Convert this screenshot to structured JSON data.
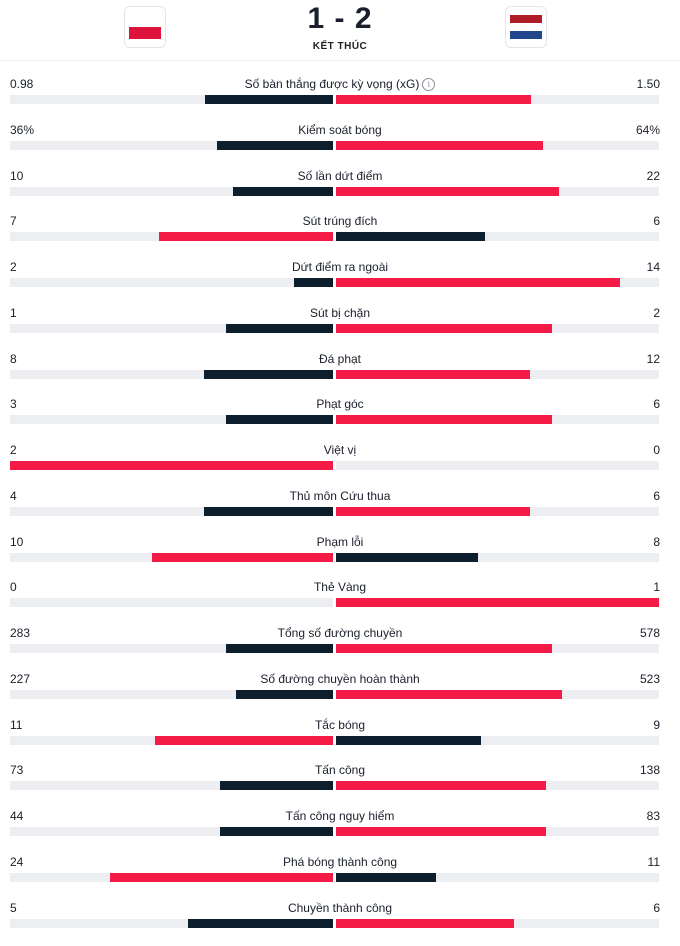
{
  "match": {
    "score": "1 - 2",
    "status": "KẾT THÚC",
    "home": {
      "flag": "poland-flag-icon",
      "flag_colors": [
        "#ffffff",
        "#dc143c"
      ]
    },
    "away": {
      "flag": "netherlands-flag-icon",
      "flag_colors": [
        "#ae1c28",
        "#ffffff",
        "#21468b"
      ]
    }
  },
  "colors": {
    "leader": "#f41c47",
    "trailer": "#0d1f2d",
    "track": "#eceef1"
  },
  "stats": [
    {
      "name": "Số bàn thắng được kỳ vọng (xG)",
      "home": "0.98",
      "away": "1.50",
      "home_share": 0.395,
      "away_share": 0.605,
      "info_icon": "info-icon"
    },
    {
      "name": "Kiểm soát bóng",
      "home": "36%",
      "away": "64%",
      "home_share": 0.36,
      "away_share": 0.64
    },
    {
      "name": "Số lần dứt điểm",
      "home": "10",
      "away": "22",
      "home_share": 0.31,
      "away_share": 0.69
    },
    {
      "name": "Sút trúng đích",
      "home": "7",
      "away": "6",
      "home_share": 0.54,
      "away_share": 0.46
    },
    {
      "name": "Dứt điểm ra ngoài",
      "home": "2",
      "away": "14",
      "home_share": 0.12,
      "away_share": 0.88
    },
    {
      "name": "Sút bị chặn",
      "home": "1",
      "away": "2",
      "home_share": 0.33,
      "away_share": 0.67
    },
    {
      "name": "Đá phạt",
      "home": "8",
      "away": "12",
      "home_share": 0.4,
      "away_share": 0.6
    },
    {
      "name": "Phạt góc",
      "home": "3",
      "away": "6",
      "home_share": 0.33,
      "away_share": 0.67
    },
    {
      "name": "Việt vị",
      "home": "2",
      "away": "0",
      "home_share": 1.0,
      "away_share": 0.0
    },
    {
      "name": "Thủ môn Cứu thua",
      "home": "4",
      "away": "6",
      "home_share": 0.4,
      "away_share": 0.6
    },
    {
      "name": "Phạm lỗi",
      "home": "10",
      "away": "8",
      "home_share": 0.56,
      "away_share": 0.44
    },
    {
      "name": "Thẻ Vàng",
      "home": "0",
      "away": "1",
      "home_share": 0.0,
      "away_share": 1.0
    },
    {
      "name": "Tổng số đường chuyền",
      "home": "283",
      "away": "578",
      "home_share": 0.33,
      "away_share": 0.67
    },
    {
      "name": "Số đường chuyền hoàn thành",
      "home": "227",
      "away": "523",
      "home_share": 0.3,
      "away_share": 0.7
    },
    {
      "name": "Tắc bóng",
      "home": "11",
      "away": "9",
      "home_share": 0.55,
      "away_share": 0.45
    },
    {
      "name": "Tấn công",
      "home": "73",
      "away": "138",
      "home_share": 0.35,
      "away_share": 0.65
    },
    {
      "name": "Tấn công nguy hiểm",
      "home": "44",
      "away": "83",
      "home_share": 0.35,
      "away_share": 0.65
    },
    {
      "name": "Phá bóng thành công",
      "home": "24",
      "away": "11",
      "home_share": 0.69,
      "away_share": 0.31
    },
    {
      "name": "Chuyền thành công",
      "home": "5",
      "away": "6",
      "home_share": 0.45,
      "away_share": 0.55
    }
  ]
}
